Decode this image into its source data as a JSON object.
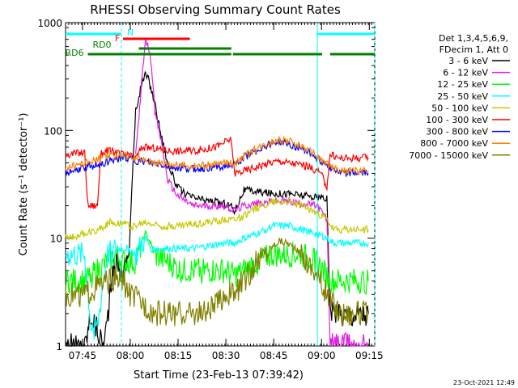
{
  "chart_data": {
    "type": "line",
    "title": "RHESSI Observing Summary Count Rates",
    "xlabel": "Start Time (23-Feb-13 07:39:42)",
    "ylabel": "Count Rate (s⁻¹ detector⁻¹)",
    "y_scale": "log",
    "ylim": [
      1,
      1000
    ],
    "xlim_minutes": [
      0,
      97
    ],
    "x_ticks": [
      {
        "label": "07:45",
        "t": 5.3
      },
      {
        "label": "08:00",
        "t": 20.3
      },
      {
        "label": "08:15",
        "t": 35.3
      },
      {
        "label": "08:30",
        "t": 50.3
      },
      {
        "label": "08:45",
        "t": 65.3
      },
      {
        "label": "09:00",
        "t": 80.3
      },
      {
        "label": "09:15",
        "t": 95.3
      }
    ],
    "y_ticks": [
      {
        "label": "1",
        "v": 1
      },
      {
        "label": "10",
        "v": 10
      },
      {
        "label": "100",
        "v": 100
      },
      {
        "label": "1000",
        "v": 1000
      }
    ],
    "legend_header": [
      "Det 1,3,4,5,6,9,",
      "FDecim 1, Att 0"
    ],
    "legend_position": "right",
    "series": [
      {
        "name": "3 - 6 keV",
        "color": "#000000",
        "points": [
          [
            0,
            1
          ],
          [
            6,
            1
          ],
          [
            8,
            2
          ],
          [
            12,
            1
          ],
          [
            15,
            5
          ],
          [
            16,
            6
          ],
          [
            18,
            5
          ],
          [
            19,
            6
          ],
          [
            20,
            8
          ],
          [
            21,
            40
          ],
          [
            22,
            150
          ],
          [
            24,
            280
          ],
          [
            25,
            330
          ],
          [
            26,
            300
          ],
          [
            28,
            180
          ],
          [
            30,
            90
          ],
          [
            32,
            50
          ],
          [
            35,
            30
          ],
          [
            38,
            25
          ],
          [
            42,
            23
          ],
          [
            46,
            22
          ],
          [
            50,
            21
          ],
          [
            52,
            20
          ],
          [
            53,
            18
          ],
          [
            56,
            28
          ],
          [
            60,
            27
          ],
          [
            65,
            26
          ],
          [
            70,
            26
          ],
          [
            74,
            25
          ],
          [
            79,
            24
          ],
          [
            82,
            23
          ],
          [
            83,
            2
          ],
          [
            88,
            2
          ],
          [
            95,
            2
          ]
        ]
      },
      {
        "name": "6 - 12 keV",
        "color": "#e020e0",
        "points": [
          [
            22,
            60
          ],
          [
            24,
            300
          ],
          [
            25,
            650
          ],
          [
            26,
            600
          ],
          [
            27,
            400
          ],
          [
            28,
            150
          ],
          [
            30,
            80
          ],
          [
            32,
            35
          ],
          [
            35,
            25
          ],
          [
            40,
            20
          ],
          [
            45,
            20
          ],
          [
            50,
            20
          ],
          [
            53,
            18
          ],
          [
            56,
            20
          ],
          [
            60,
            21
          ],
          [
            65,
            22
          ],
          [
            70,
            22
          ],
          [
            74,
            21
          ],
          [
            79,
            20
          ],
          [
            82,
            15
          ],
          [
            83,
            1
          ],
          [
            95,
            1
          ]
        ]
      },
      {
        "name": "12 - 25 keV",
        "color": "#00ff00",
        "points": [
          [
            0,
            4
          ],
          [
            6,
            4
          ],
          [
            10,
            5
          ],
          [
            13,
            6
          ],
          [
            16,
            7
          ],
          [
            18,
            6
          ],
          [
            20,
            6
          ],
          [
            22,
            6
          ],
          [
            24,
            9
          ],
          [
            25,
            11
          ],
          [
            26,
            10
          ],
          [
            28,
            7
          ],
          [
            32,
            6
          ],
          [
            36,
            5
          ],
          [
            40,
            5
          ],
          [
            45,
            5
          ],
          [
            50,
            5
          ],
          [
            53,
            4.5
          ],
          [
            56,
            5
          ],
          [
            60,
            6
          ],
          [
            65,
            7
          ],
          [
            70,
            7
          ],
          [
            74,
            7
          ],
          [
            79,
            6
          ],
          [
            83,
            4
          ],
          [
            95,
            4
          ]
        ]
      },
      {
        "name": "25 - 50 keV",
        "color": "#00ffff",
        "points": [
          [
            0,
            7
          ],
          [
            6,
            7
          ],
          [
            8,
            1.5
          ],
          [
            10,
            1.5
          ],
          [
            13,
            7
          ],
          [
            16,
            8
          ],
          [
            18,
            8
          ],
          [
            20,
            8
          ],
          [
            22,
            7
          ],
          [
            25,
            10
          ],
          [
            27,
            8
          ],
          [
            30,
            8
          ],
          [
            35,
            8
          ],
          [
            40,
            8
          ],
          [
            45,
            8.5
          ],
          [
            50,
            9
          ],
          [
            53,
            9
          ],
          [
            56,
            10
          ],
          [
            60,
            11
          ],
          [
            65,
            13
          ],
          [
            70,
            13
          ],
          [
            74,
            12
          ],
          [
            79,
            11
          ],
          [
            82,
            10
          ],
          [
            84,
            9
          ],
          [
            95,
            9
          ]
        ]
      },
      {
        "name": "50 - 100 keV",
        "color": "#c8c800",
        "points": [
          [
            0,
            10
          ],
          [
            6,
            11
          ],
          [
            10,
            12
          ],
          [
            14,
            14
          ],
          [
            18,
            14
          ],
          [
            20,
            13
          ],
          [
            22,
            13
          ],
          [
            25,
            14
          ],
          [
            30,
            13
          ],
          [
            35,
            13
          ],
          [
            40,
            13.5
          ],
          [
            45,
            14
          ],
          [
            50,
            15
          ],
          [
            53,
            15
          ],
          [
            56,
            16
          ],
          [
            60,
            19
          ],
          [
            65,
            22
          ],
          [
            70,
            22
          ],
          [
            74,
            20
          ],
          [
            79,
            17
          ],
          [
            82,
            15
          ],
          [
            84,
            12
          ],
          [
            95,
            12
          ]
        ]
      },
      {
        "name": "100 - 300 keV",
        "color": "#ff0000",
        "points": [
          [
            0,
            60
          ],
          [
            6,
            62
          ],
          [
            7,
            20
          ],
          [
            10,
            20
          ],
          [
            11,
            60
          ],
          [
            13,
            65
          ],
          [
            16,
            62
          ],
          [
            18,
            60
          ],
          [
            20,
            58
          ],
          [
            22,
            55
          ],
          [
            24,
            70
          ],
          [
            28,
            68
          ],
          [
            32,
            65
          ],
          [
            36,
            64
          ],
          [
            40,
            65
          ],
          [
            44,
            67
          ],
          [
            48,
            72
          ],
          [
            50,
            78
          ],
          [
            52,
            82
          ],
          [
            53,
            40
          ],
          [
            56,
            42
          ],
          [
            60,
            46
          ],
          [
            64,
            50
          ],
          [
            67,
            52
          ],
          [
            70,
            50
          ],
          [
            74,
            48
          ],
          [
            77,
            45
          ],
          [
            80,
            40
          ],
          [
            82,
            30
          ],
          [
            83,
            60
          ],
          [
            86,
            55
          ],
          [
            95,
            56
          ]
        ]
      },
      {
        "name": "300 - 800 keV",
        "color": "#0000ff",
        "points": [
          [
            0,
            40
          ],
          [
            6,
            45
          ],
          [
            10,
            48
          ],
          [
            14,
            52
          ],
          [
            18,
            56
          ],
          [
            20,
            55
          ],
          [
            22,
            52
          ],
          [
            26,
            50
          ],
          [
            30,
            48
          ],
          [
            34,
            45
          ],
          [
            38,
            44
          ],
          [
            42,
            44
          ],
          [
            46,
            45
          ],
          [
            50,
            47
          ],
          [
            53,
            47
          ],
          [
            56,
            56
          ],
          [
            60,
            65
          ],
          [
            64,
            75
          ],
          [
            67,
            78
          ],
          [
            70,
            75
          ],
          [
            74,
            68
          ],
          [
            78,
            58
          ],
          [
            82,
            48
          ],
          [
            86,
            40
          ],
          [
            95,
            40
          ]
        ]
      },
      {
        "name": "800 - 7000 keV",
        "color": "#ff8000",
        "points": [
          [
            0,
            45
          ],
          [
            6,
            50
          ],
          [
            10,
            54
          ],
          [
            14,
            58
          ],
          [
            18,
            60
          ],
          [
            20,
            58
          ],
          [
            22,
            55
          ],
          [
            26,
            52
          ],
          [
            30,
            50
          ],
          [
            34,
            48
          ],
          [
            38,
            47
          ],
          [
            42,
            47
          ],
          [
            46,
            48
          ],
          [
            50,
            50
          ],
          [
            53,
            50
          ],
          [
            56,
            58
          ],
          [
            60,
            68
          ],
          [
            64,
            78
          ],
          [
            67,
            82
          ],
          [
            70,
            80
          ],
          [
            74,
            72
          ],
          [
            78,
            60
          ],
          [
            82,
            48
          ],
          [
            86,
            42
          ],
          [
            95,
            42
          ]
        ]
      },
      {
        "name": "7000 - 15000 keV",
        "color": "#808000",
        "points": [
          [
            0,
            3
          ],
          [
            6,
            3
          ],
          [
            10,
            3.5
          ],
          [
            14,
            4
          ],
          [
            18,
            4
          ],
          [
            20,
            3
          ],
          [
            24,
            2.5
          ],
          [
            28,
            2
          ],
          [
            32,
            2
          ],
          [
            36,
            2
          ],
          [
            40,
            2
          ],
          [
            44,
            2
          ],
          [
            48,
            2.5
          ],
          [
            50,
            3
          ],
          [
            53,
            3
          ],
          [
            56,
            4
          ],
          [
            60,
            6
          ],
          [
            64,
            8
          ],
          [
            67,
            9.5
          ],
          [
            70,
            9
          ],
          [
            74,
            7
          ],
          [
            78,
            5
          ],
          [
            82,
            3
          ],
          [
            86,
            2
          ],
          [
            95,
            2
          ]
        ]
      }
    ],
    "state_bars": [
      {
        "label": "N",
        "color": "#00ffff",
        "segments": [
          [
            0,
            17.5
          ],
          [
            79,
            97
          ]
        ]
      },
      {
        "label": "F",
        "color": "#ff0000",
        "segments": [
          [
            18,
            39
          ]
        ]
      },
      {
        "label": "RD0",
        "color": "#008000",
        "segments": [
          [
            23,
            52
          ]
        ]
      },
      {
        "label": "RD6",
        "color": "#008000",
        "segments": [
          [
            7,
            52
          ],
          [
            52.5,
            80.5
          ],
          [
            83,
            97
          ]
        ]
      }
    ],
    "vertical_markers": [
      {
        "t": 17.5,
        "color": "#00ffff",
        "style": "dashed"
      },
      {
        "t": 79,
        "color": "#00ffff",
        "style": "solid"
      },
      {
        "t": 97,
        "color": "#00ffff",
        "style": "dashed"
      }
    ]
  },
  "footer_date": "23-Oct-2021 12:49"
}
